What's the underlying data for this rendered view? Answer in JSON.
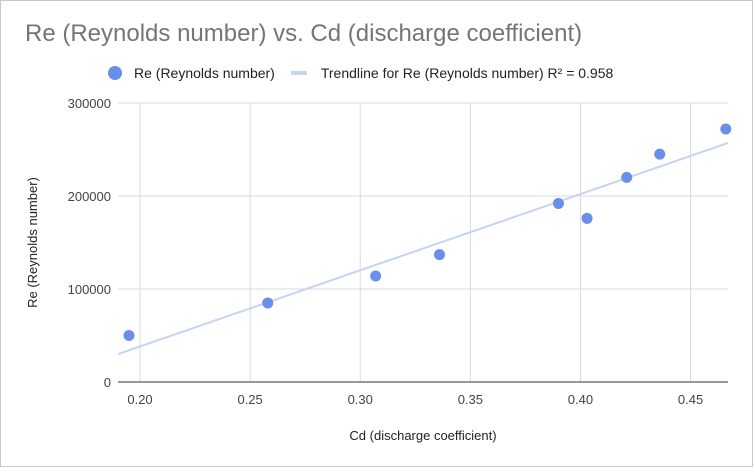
{
  "chart_data": {
    "type": "scatter",
    "title": "Re (Reynolds number) vs. Cd (discharge coefficient)",
    "xlabel": "Cd (discharge coefficient)",
    "ylabel": "Re (Reynolds number)",
    "xlim": [
      0.19,
      0.467
    ],
    "ylim": [
      0,
      300000
    ],
    "x_ticks": [
      "0.20",
      "0.25",
      "0.30",
      "0.35",
      "0.40",
      "0.45"
    ],
    "x_tick_values": [
      0.2,
      0.25,
      0.3,
      0.35,
      0.4,
      0.45
    ],
    "y_ticks": [
      "0",
      "100000",
      "200000",
      "300000"
    ],
    "y_tick_values": [
      0,
      100000,
      200000,
      300000
    ],
    "grid": true,
    "legend_position": "top",
    "series": [
      {
        "name": "Re (Reynolds number)",
        "color": "#6a8fe8",
        "points": [
          {
            "x": 0.195,
            "y": 50000
          },
          {
            "x": 0.258,
            "y": 85000
          },
          {
            "x": 0.307,
            "y": 114000
          },
          {
            "x": 0.336,
            "y": 137000
          },
          {
            "x": 0.39,
            "y": 192000
          },
          {
            "x": 0.403,
            "y": 176000
          },
          {
            "x": 0.421,
            "y": 220000
          },
          {
            "x": 0.436,
            "y": 245000
          },
          {
            "x": 0.466,
            "y": 272000
          }
        ]
      }
    ],
    "trendline": {
      "label": "Trendline for Re (Reynolds number) R² = 0.958",
      "color": "#c5d3f6",
      "start": {
        "x": 0.19,
        "y": 30000
      },
      "end": {
        "x": 0.467,
        "y": 257000
      }
    }
  }
}
